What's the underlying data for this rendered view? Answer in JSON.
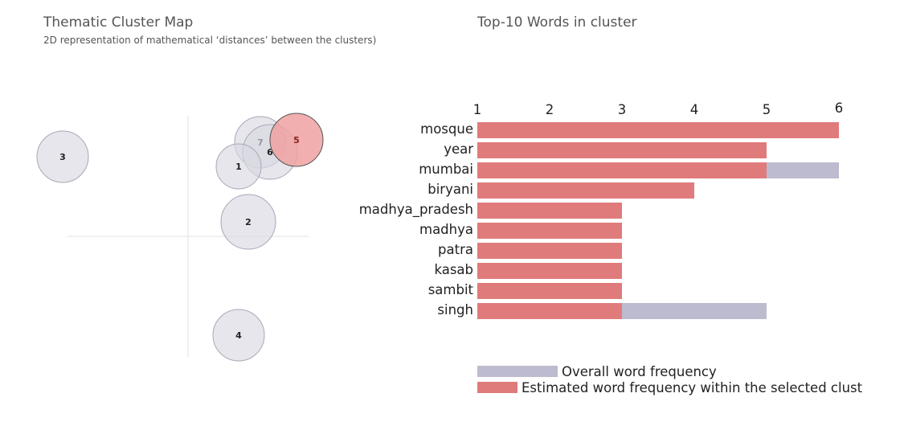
{
  "left_panel": {
    "title": "Thematic Cluster Map",
    "subtitle": "2D representation of mathematical ‘distances’ between the clusters)"
  },
  "right_panel": {
    "title": "Top-10 Words in cluster"
  },
  "legend": {
    "overall_label": "Overall word frequency",
    "estimated_label": "Estimated word frequency within the selected clust"
  },
  "colors": {
    "cluster_fill": "#d8d8e2",
    "cluster_stroke": "#a8a8b8",
    "selected_fill": "#f0a1a1",
    "selected_stroke": "#555555",
    "selected_label": "#8a2020",
    "overall_bar": "#bdbbcf",
    "estimated_bar": "#e07b7b",
    "axis_line": "#e2e2e2"
  },
  "chart_data": [
    {
      "type": "scatter",
      "subtype": "bubble",
      "selected": "5",
      "points": [
        {
          "label": "3",
          "x": -0.52,
          "y": 0.33,
          "size": 32
        },
        {
          "label": "7",
          "x": 0.3,
          "y": 0.39,
          "size": 32
        },
        {
          "label": "6",
          "x": 0.34,
          "y": 0.35,
          "size": 34
        },
        {
          "label": "5",
          "x": 0.45,
          "y": 0.4,
          "size": 33
        },
        {
          "label": "1",
          "x": 0.21,
          "y": 0.29,
          "size": 28
        },
        {
          "label": "2",
          "x": 0.25,
          "y": 0.06,
          "size": 34
        },
        {
          "label": "4",
          "x": 0.21,
          "y": -0.41,
          "size": 32
        }
      ],
      "xlim": [
        -0.5,
        0.5
      ],
      "ylim": [
        -0.5,
        0.5
      ],
      "axes_at_origin": true
    },
    {
      "type": "bar",
      "orientation": "horizontal",
      "categories": [
        "mosque",
        "year",
        "mumbai",
        "biryani",
        "madhya_pradesh",
        "madhya",
        "patra",
        "kasab",
        "sambit",
        "singh"
      ],
      "series": [
        {
          "key": "overall",
          "values": [
            6,
            5,
            6,
            4,
            3,
            3,
            3,
            3,
            3,
            5
          ]
        },
        {
          "key": "estimated",
          "values": [
            6,
            5,
            5,
            4,
            3,
            3,
            3,
            3,
            3,
            3
          ]
        }
      ],
      "xticks": [
        "1",
        "2",
        "3",
        "4",
        "5",
        "6"
      ],
      "xlim": [
        1,
        6
      ],
      "xaxis_position": "top"
    }
  ]
}
